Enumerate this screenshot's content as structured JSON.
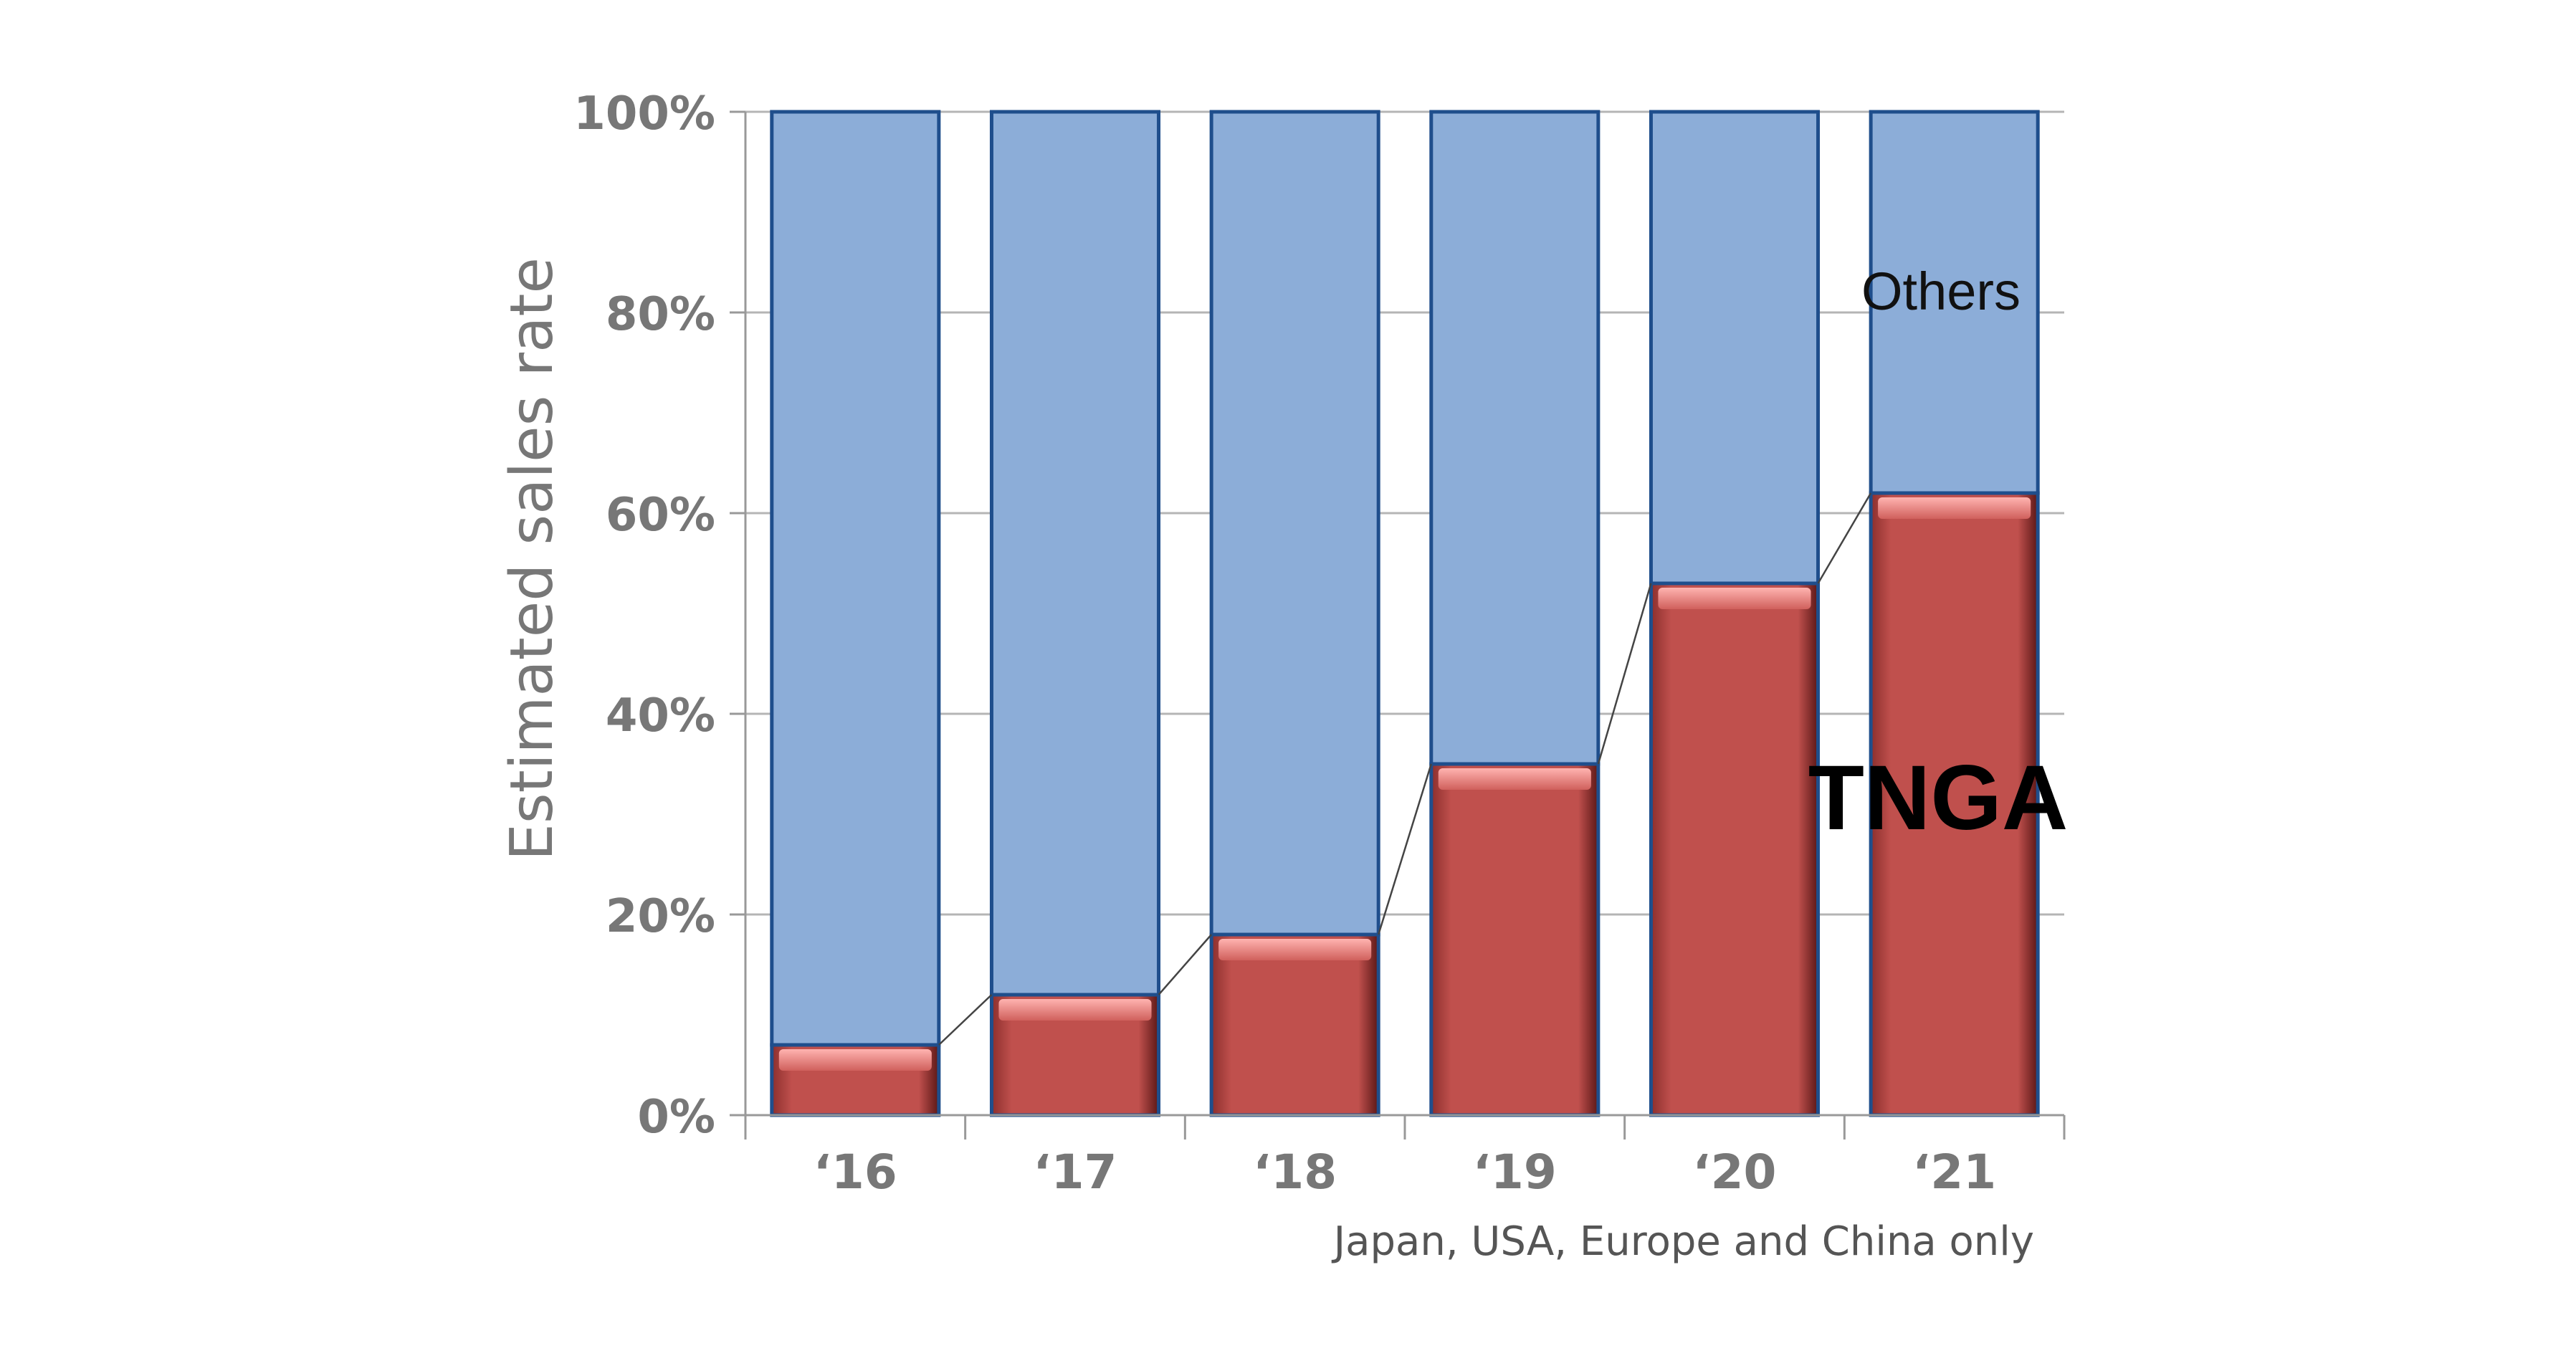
{
  "chart_data": {
    "type": "bar",
    "stacked": true,
    "categories": [
      "‘16",
      "‘17",
      "‘18",
      "‘19",
      "‘20",
      "‘21"
    ],
    "series": [
      {
        "name": "TNGA",
        "values": [
          7,
          12,
          18,
          35,
          53,
          62
        ],
        "color": "#c0504d"
      },
      {
        "name": "Others",
        "values": [
          93,
          88,
          82,
          65,
          47,
          38
        ],
        "color": "#8cadd8"
      }
    ],
    "ylabel": "Estimated sales rate",
    "ylim": [
      0,
      100
    ],
    "yticks": [
      "0%",
      "20%",
      "40%",
      "60%",
      "80%",
      "100%"
    ],
    "grid": true,
    "connector_lines": true,
    "note": "Japan, USA, Europe and China only",
    "annotations": {
      "others": "Others",
      "tnga": "TNGA"
    }
  }
}
